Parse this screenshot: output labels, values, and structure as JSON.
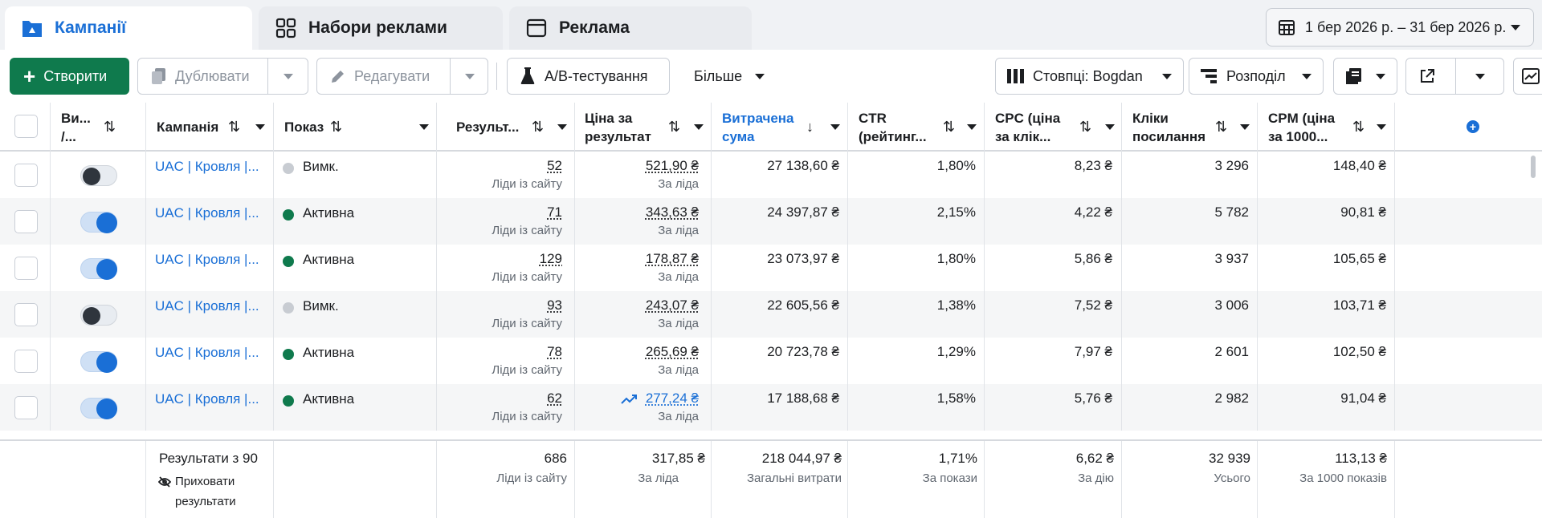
{
  "tabs": [
    {
      "label": "Кампанії",
      "icon": "folder-icon",
      "active": true
    },
    {
      "label": "Набори реклами",
      "icon": "grid-icon",
      "active": false
    },
    {
      "label": "Реклама",
      "icon": "ad-window-icon",
      "active": false
    }
  ],
  "date_range": {
    "label": "1 бер 2026 р. – 31 бер 2026 р.",
    "icon": "calendar-icon"
  },
  "toolbar": {
    "create": "Створити",
    "duplicate": "Дублювати",
    "edit": "Редагувати",
    "ab_test": "A/B-тестування",
    "more": "Більше",
    "columns": "Стовпці: Bogdan",
    "breakdown": "Розподіл"
  },
  "columns": {
    "toggle": "Ви... /...",
    "campaign": "Кампанія",
    "delivery": "Показ",
    "results": "Результ...",
    "cost_per_result": "Ціна за результат",
    "amount_spent": "Витрачена сума",
    "ctr": "CTR (рейтинг...",
    "cpc": "CPC (ціна за клік...",
    "link_clicks": "Кліки посилання",
    "cpm": "CPM (ціна за 1000..."
  },
  "rows": [
    {
      "on": false,
      "campaign": "UAC | Кровля |...",
      "status": "Вимк.",
      "status_color": "#c8ccd2",
      "results": "52",
      "results_sub": "Ліди із сайту",
      "cpr": "521,90 ₴",
      "cpr_sub": "За ліда",
      "trend": false,
      "spent": "27 138,60 ₴",
      "ctr": "1,80%",
      "cpc": "8,23 ₴",
      "clicks": "3 296",
      "cpm": "148,40 ₴"
    },
    {
      "on": true,
      "campaign": "UAC | Кровля |...",
      "status": "Активна",
      "status_color": "#0f7a4d",
      "results": "71",
      "results_sub": "Ліди із сайту",
      "cpr": "343,63 ₴",
      "cpr_sub": "За ліда",
      "trend": false,
      "spent": "24 397,87 ₴",
      "ctr": "2,15%",
      "cpc": "4,22 ₴",
      "clicks": "5 782",
      "cpm": "90,81 ₴"
    },
    {
      "on": true,
      "campaign": "UAC | Кровля |...",
      "status": "Активна",
      "status_color": "#0f7a4d",
      "results": "129",
      "results_sub": "Ліди із сайту",
      "cpr": "178,87 ₴",
      "cpr_sub": "За ліда",
      "trend": false,
      "spent": "23 073,97 ₴",
      "ctr": "1,80%",
      "cpc": "5,86 ₴",
      "clicks": "3 937",
      "cpm": "105,65 ₴"
    },
    {
      "on": false,
      "campaign": "UAC | Кровля |...",
      "status": "Вимк.",
      "status_color": "#c8ccd2",
      "results": "93",
      "results_sub": "Ліди із сайту",
      "cpr": "243,07 ₴",
      "cpr_sub": "За ліда",
      "trend": false,
      "spent": "22 605,56 ₴",
      "ctr": "1,38%",
      "cpc": "7,52 ₴",
      "clicks": "3 006",
      "cpm": "103,71 ₴"
    },
    {
      "on": true,
      "campaign": "UAC | Кровля |...",
      "status": "Активна",
      "status_color": "#0f7a4d",
      "results": "78",
      "results_sub": "Ліди із сайту",
      "cpr": "265,69 ₴",
      "cpr_sub": "За ліда",
      "trend": false,
      "spent": "20 723,78 ₴",
      "ctr": "1,29%",
      "cpc": "7,97 ₴",
      "clicks": "2 601",
      "cpm": "102,50 ₴"
    },
    {
      "on": true,
      "campaign": "UAC | Кровля |...",
      "status": "Активна",
      "status_color": "#0f7a4d",
      "results": "62",
      "results_sub": "Ліди із сайту",
      "cpr": "277,24 ₴",
      "cpr_sub": "За ліда",
      "trend": true,
      "spent": "17 188,68 ₴",
      "ctr": "1,58%",
      "cpc": "5,76 ₴",
      "clicks": "2 982",
      "cpm": "91,04 ₴"
    }
  ],
  "footer": {
    "results_of": "Результати з 90",
    "hide_results": "Приховати результати",
    "results": "686",
    "results_sub": "Ліди із сайту",
    "cpr": "317,85 ₴",
    "cpr_sub": "За ліда",
    "spent": "218 044,97 ₴",
    "spent_sub": "Загальні витрати",
    "ctr": "1,71%",
    "ctr_sub": "За покази",
    "cpc": "6,62 ₴",
    "cpc_sub": "За дію",
    "clicks": "32 939",
    "clicks_sub": "Усього",
    "cpm": "113,13 ₴",
    "cpm_sub": "За 1000 показів"
  },
  "colors": {
    "accent": "#1a6fd6",
    "primary_button": "#0f7a4d",
    "active_status": "#0f7a4d",
    "off_status": "#c8ccd2"
  }
}
